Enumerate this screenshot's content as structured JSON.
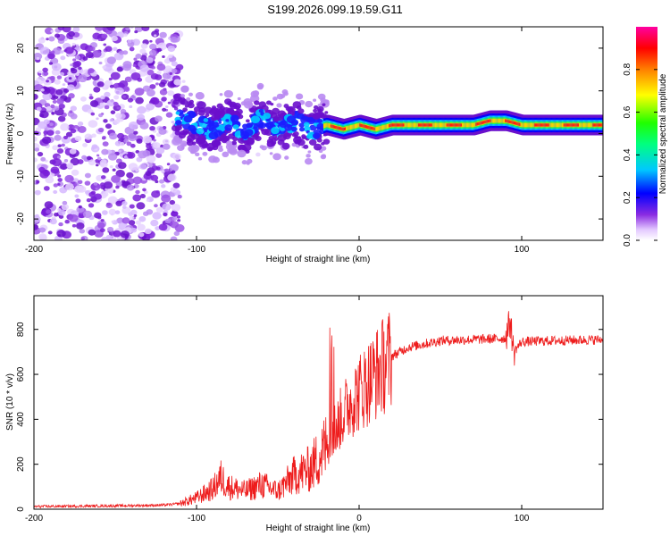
{
  "title": "S199.2026.099.19.59.G11",
  "chart_data": [
    {
      "type": "heatmap",
      "xlabel": "Height of straight line (km)",
      "ylabel": "Frequency (Hz)",
      "xlim": [
        -200,
        150
      ],
      "ylim": [
        -25,
        25
      ],
      "xticks": [
        -200,
        -100,
        0,
        100
      ],
      "xtick_labels": [
        "-200",
        "-100",
        "0",
        "100"
      ],
      "yticks": [
        -20,
        -10,
        0,
        10,
        20
      ],
      "ytick_labels": [
        "-20",
        "-10",
        "0",
        "10",
        "20"
      ],
      "colorbar": {
        "label": "Normalized spectral amplitude",
        "range": [
          0,
          1
        ],
        "ticks": [
          0,
          0.2,
          0.4,
          0.6,
          0.8
        ],
        "tick_labels": [
          "0.0",
          "0.2",
          "0.4",
          "0.6",
          "0.8"
        ]
      },
      "ridge": {
        "x": [
          -110,
          -100,
          -90,
          -80,
          -70,
          -60,
          -50,
          -40,
          -30,
          -20,
          -10,
          0,
          10,
          20,
          40,
          60,
          70,
          80,
          85,
          90,
          100,
          110,
          130,
          150
        ],
        "freq": [
          4,
          2,
          1,
          3,
          0,
          4,
          1,
          3,
          1,
          2,
          1,
          2,
          1,
          2,
          2,
          2,
          2,
          3,
          3,
          3,
          2,
          2,
          2,
          2
        ]
      }
    },
    {
      "type": "line",
      "xlabel": "Height of straight line (km)",
      "ylabel": "SNR (10 * v/v)",
      "xlim": [
        -200,
        150
      ],
      "ylim": [
        0,
        950
      ],
      "xticks": [
        -200,
        -100,
        0,
        100
      ],
      "xtick_labels": [
        "-200",
        "-100",
        "0",
        "100"
      ],
      "yticks": [
        0,
        200,
        400,
        600,
        800
      ],
      "ytick_labels": [
        "0",
        "200",
        "400",
        "600",
        "800"
      ],
      "color": "#ee1c1c",
      "trend": {
        "x": [
          -200,
          -150,
          -120,
          -110,
          -100,
          -90,
          -85,
          -80,
          -70,
          -60,
          -50,
          -40,
          -30,
          -20,
          -15,
          -10,
          -5,
          0,
          10,
          20,
          30,
          50,
          70,
          90,
          93,
          95,
          100,
          120,
          150
        ],
        "y": [
          12,
          15,
          18,
          25,
          50,
          90,
          140,
          100,
          80,
          110,
          80,
          150,
          180,
          280,
          360,
          420,
          480,
          520,
          600,
          680,
          720,
          750,
          755,
          760,
          840,
          700,
          745,
          750,
          755
        ]
      }
    }
  ]
}
